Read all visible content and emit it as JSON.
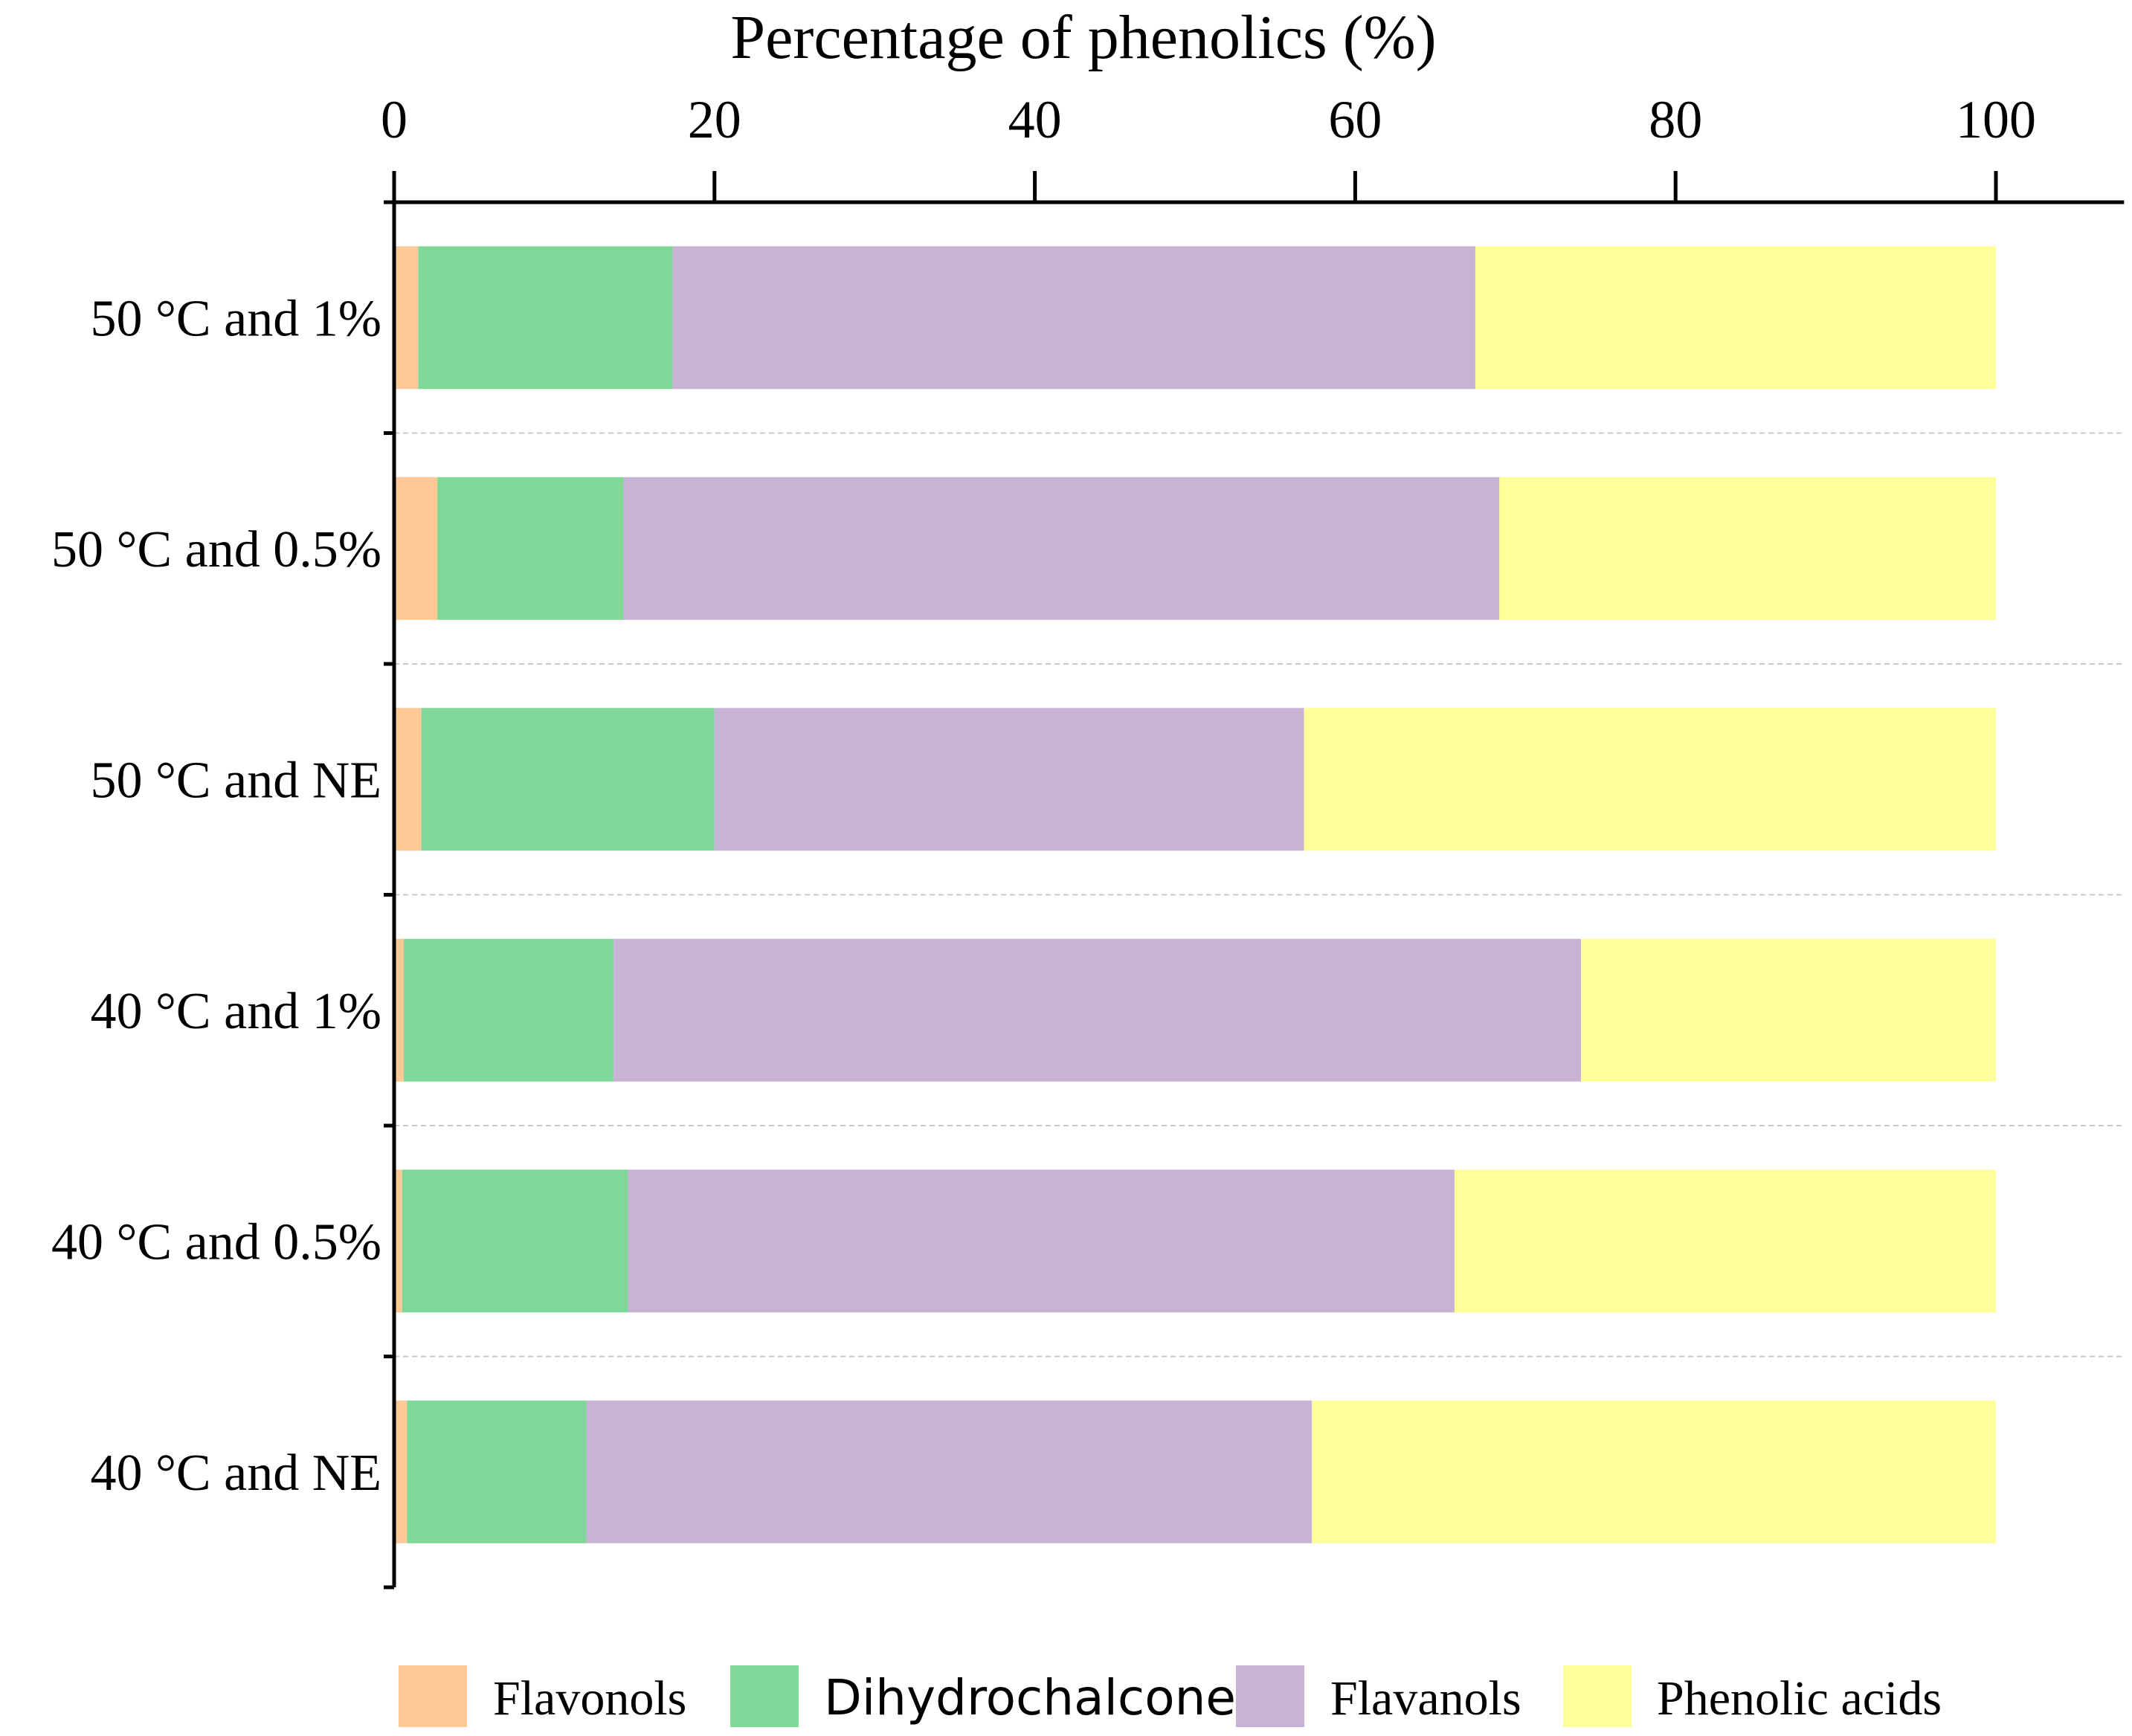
{
  "chart_data": {
    "type": "bar",
    "orientation": "horizontal",
    "stacked": true,
    "title": "Percentage of phenolics (%)",
    "xlabel": "Percentage of phenolics (%)",
    "ylabel": "",
    "xlim": [
      0,
      108
    ],
    "xticks": [
      0,
      20,
      40,
      60,
      80,
      100
    ],
    "xtick_labels": [
      "0",
      "20",
      "40",
      "60",
      "80",
      "100"
    ],
    "axis_position": "top",
    "grid": "dashed separators between categories",
    "categories": [
      "50 °C and 1%",
      "50 °C and 0.5%",
      "50 °C and NE",
      "40 °C and 1%",
      "40 °C and 0.5%",
      "40 °C and NE"
    ],
    "series": [
      {
        "name": "Flavonols",
        "color": "#FFC896",
        "values": [
          1.5,
          2.7,
          1.7,
          0.6,
          0.5,
          0.8
        ]
      },
      {
        "name": "Dihydrochalcones",
        "color": "#80D898",
        "values": [
          15.9,
          11.6,
          18.3,
          13.1,
          14.1,
          11.2
        ]
      },
      {
        "name": "Flavanols",
        "color": "#C8B3D6",
        "values": [
          50.1,
          54.7,
          36.8,
          60.4,
          51.6,
          45.3
        ]
      },
      {
        "name": "Phenolic acids",
        "color": "#FFFF99",
        "values": [
          32.5,
          31.0,
          43.2,
          25.9,
          33.8,
          42.7
        ]
      }
    ],
    "legend_position": "bottom"
  }
}
